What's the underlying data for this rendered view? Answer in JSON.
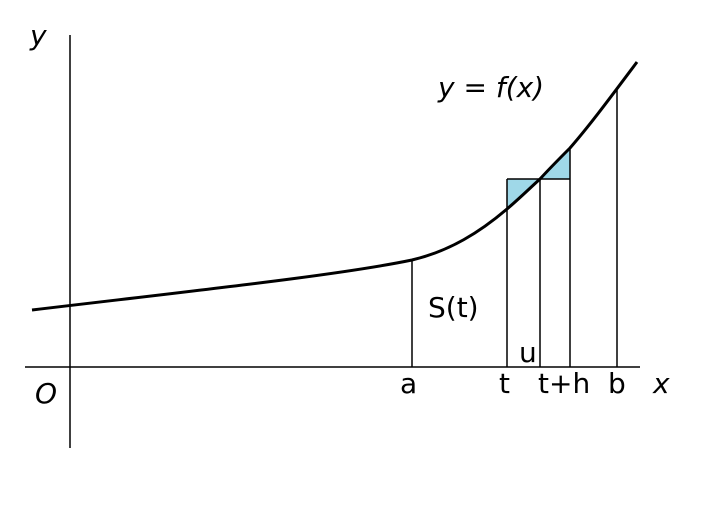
{
  "labels": {
    "y_axis": "y",
    "x_axis": "x",
    "origin": "O",
    "curve": "y = f(x)",
    "area": "S(t)",
    "a": "a",
    "t": "t",
    "u": "u",
    "t_plus_h": "t+h",
    "b": "b"
  },
  "colors": {
    "shade": "#9fd8e8",
    "line": "#000000"
  }
}
